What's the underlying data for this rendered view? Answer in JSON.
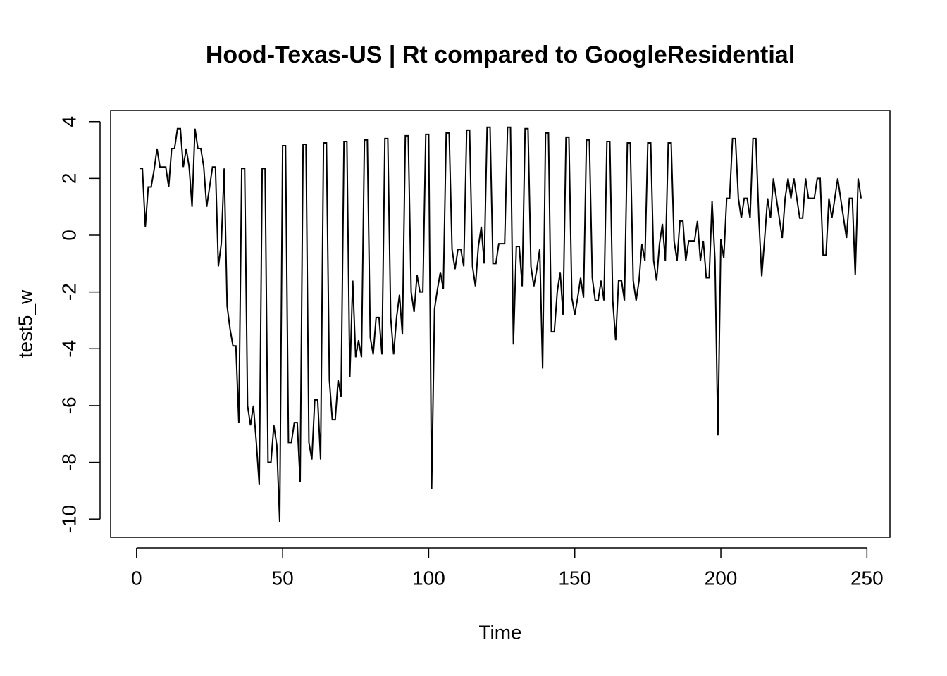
{
  "chart_data": {
    "type": "line",
    "title": "Hood-Texas-US | Rt compared to GoogleResidential",
    "x_label": "Time",
    "y_label": "test5_w",
    "xlim": [
      -8.88,
      257.88
    ],
    "ylim": [
      -10.64,
      4.39
    ],
    "xticks": [
      0,
      50,
      100,
      150,
      200,
      250
    ],
    "yticks": [
      -10,
      -8,
      -6,
      -4,
      -2,
      0,
      2,
      4
    ],
    "color": "#000000",
    "x": [
      1,
      2,
      3,
      4,
      5,
      6,
      7,
      8,
      9,
      10,
      11,
      12,
      13,
      14,
      15,
      16,
      17,
      18,
      19,
      20,
      21,
      22,
      23,
      24,
      25,
      26,
      27,
      28,
      29,
      30,
      31,
      32,
      33,
      34,
      35,
      36,
      37,
      38,
      39,
      40,
      41,
      42,
      43,
      44,
      45,
      46,
      47,
      48,
      49,
      50,
      51,
      52,
      53,
      54,
      55,
      56,
      57,
      58,
      59,
      60,
      61,
      62,
      63,
      64,
      65,
      66,
      67,
      68,
      69,
      70,
      71,
      72,
      73,
      74,
      75,
      76,
      77,
      78,
      79,
      80,
      81,
      82,
      83,
      84,
      85,
      86,
      87,
      88,
      89,
      90,
      91,
      92,
      93,
      94,
      95,
      96,
      97,
      98,
      99,
      100,
      101,
      102,
      103,
      104,
      105,
      106,
      107,
      108,
      109,
      110,
      111,
      112,
      113,
      114,
      115,
      116,
      117,
      118,
      119,
      120,
      121,
      122,
      123,
      124,
      125,
      126,
      127,
      128,
      129,
      130,
      131,
      132,
      133,
      134,
      135,
      136,
      137,
      138,
      139,
      140,
      141,
      142,
      143,
      144,
      145,
      146,
      147,
      148,
      149,
      150,
      151,
      152,
      153,
      154,
      155,
      156,
      157,
      158,
      159,
      160,
      161,
      162,
      163,
      164,
      165,
      166,
      167,
      168,
      169,
      170,
      171,
      172,
      173,
      174,
      175,
      176,
      177,
      178,
      179,
      180,
      181,
      182,
      183,
      184,
      185,
      186,
      187,
      188,
      189,
      190,
      191,
      192,
      193,
      194,
      195,
      196,
      197,
      198,
      199,
      200,
      201,
      202,
      203,
      204,
      205,
      206,
      207,
      208,
      209,
      210,
      211,
      212,
      213,
      214,
      215,
      216,
      217,
      218,
      219,
      220,
      221,
      222,
      223,
      224,
      225,
      226,
      227,
      228,
      229,
      230,
      231,
      232,
      233,
      234,
      235,
      236,
      237,
      238,
      239,
      240,
      241,
      242,
      243,
      244,
      245,
      246,
      247,
      248
    ],
    "values": [
      2.35,
      2.35,
      0.3,
      1.7,
      1.7,
      2.3,
      3.05,
      2.4,
      2.4,
      2.4,
      1.7,
      3.05,
      3.05,
      3.75,
      3.75,
      2.4,
      3.05,
      2.4,
      1.0,
      3.75,
      3.05,
      3.05,
      2.4,
      1.0,
      1.7,
      2.4,
      2.4,
      -1.1,
      -0.3,
      2.35,
      -2.5,
      -3.3,
      -3.9,
      -3.9,
      -6.6,
      2.35,
      2.35,
      -6.0,
      -6.7,
      -6.0,
      -7.3,
      -8.8,
      2.35,
      2.35,
      -8.0,
      -8.0,
      -6.7,
      -7.4,
      -10.1,
      3.15,
      3.15,
      -7.3,
      -7.3,
      -6.6,
      -6.6,
      -8.7,
      3.2,
      3.2,
      -7.3,
      -7.9,
      -5.8,
      -5.8,
      -7.9,
      3.25,
      3.25,
      -5.1,
      -6.5,
      -6.5,
      -5.1,
      -5.7,
      3.3,
      3.3,
      -5.0,
      -1.6,
      -4.3,
      -3.7,
      -4.3,
      3.35,
      3.35,
      -3.6,
      -4.2,
      -2.9,
      -2.9,
      -4.2,
      3.4,
      3.4,
      -2.9,
      -4.2,
      -2.9,
      -2.1,
      -3.5,
      3.5,
      3.5,
      -2.0,
      -2.7,
      -1.4,
      -2.0,
      -2.0,
      3.55,
      3.55,
      -8.95,
      -2.6,
      -1.9,
      -1.3,
      -1.9,
      3.6,
      3.6,
      -0.5,
      -1.2,
      -0.5,
      -0.5,
      -1.1,
      3.7,
      3.7,
      -1.1,
      -1.8,
      -0.4,
      0.3,
      -1.0,
      3.8,
      3.8,
      -1.0,
      -1.0,
      -0.3,
      -0.3,
      -0.3,
      3.8,
      3.8,
      -3.85,
      -0.4,
      -0.4,
      -1.8,
      3.75,
      3.75,
      -1.1,
      -1.8,
      -1.2,
      -0.5,
      -4.7,
      3.6,
      3.6,
      -3.4,
      -3.4,
      -2.0,
      -1.3,
      -2.8,
      3.45,
      3.45,
      -2.2,
      -2.8,
      -2.2,
      -1.5,
      -2.2,
      3.35,
      3.35,
      -1.5,
      -2.3,
      -2.3,
      -1.6,
      -2.3,
      3.3,
      3.3,
      -2.3,
      -3.7,
      -1.6,
      -1.6,
      -2.3,
      3.25,
      3.25,
      -1.6,
      -2.3,
      -1.6,
      -0.3,
      -0.9,
      3.25,
      3.25,
      -0.9,
      -1.6,
      -0.3,
      0.4,
      -0.9,
      3.25,
      3.25,
      -0.2,
      -0.9,
      0.5,
      0.5,
      -0.9,
      -0.2,
      -0.2,
      -0.2,
      0.5,
      -0.9,
      -0.2,
      -1.5,
      -1.5,
      1.2,
      -0.9,
      -7.05,
      -0.15,
      -0.8,
      1.3,
      1.3,
      3.4,
      3.4,
      1.3,
      0.6,
      1.3,
      1.3,
      0.6,
      3.4,
      3.4,
      0.6,
      -1.45,
      -0.1,
      1.3,
      0.6,
      2.0,
      1.3,
      0.6,
      -0.1,
      1.3,
      2.0,
      1.3,
      2.0,
      1.3,
      0.6,
      0.6,
      2.0,
      1.3,
      1.3,
      1.3,
      2.0,
      2.0,
      -0.7,
      -0.7,
      1.3,
      0.6,
      1.3,
      2.0,
      1.3,
      0.6,
      -0.1,
      1.3,
      1.3,
      -1.4,
      2.0,
      1.3
    ]
  }
}
